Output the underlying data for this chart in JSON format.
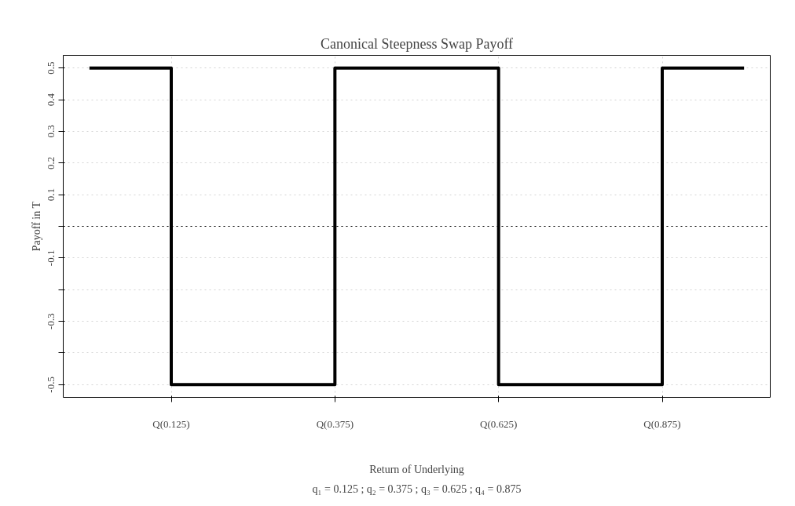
{
  "chart_data": {
    "type": "step",
    "title": "Canonical Steepness Swap Payoff",
    "xlabel": "Return of Underlying",
    "ylabel": "Payoff in T",
    "annotations": [
      "q₁ = 0.125 ; q₂ = 0.375 ; q₃ = 0.625 ; q₄ = 0.875"
    ],
    "categories": [
      null,
      "Q(0.125)",
      null,
      "Q(0.375)",
      null,
      "Q(0.625)",
      null,
      "Q(0.875)",
      null
    ],
    "series": [
      {
        "color": "#000000",
        "values": [
          0.5,
          -0.5,
          -0.5,
          0.5,
          0.5,
          -0.5,
          -0.5,
          0.5,
          0.5
        ]
      }
    ],
    "ylim": [
      -0.54,
      0.54
    ],
    "yticks": [
      -0.5,
      {
        "value": -0.4,
        "label": null
      },
      -0.3,
      {
        "value": -0.2,
        "label": null
      },
      -0.1,
      {
        "value": 0,
        "label": null
      },
      0.1,
      0.2,
      0.3,
      0.4,
      0.5
    ],
    "ref_lines": [
      {
        "axis": "y",
        "value": 0,
        "color": "#000000",
        "line_style": "dotted"
      }
    ],
    "grid": true,
    "marker": "none",
    "line_style": "solid"
  }
}
